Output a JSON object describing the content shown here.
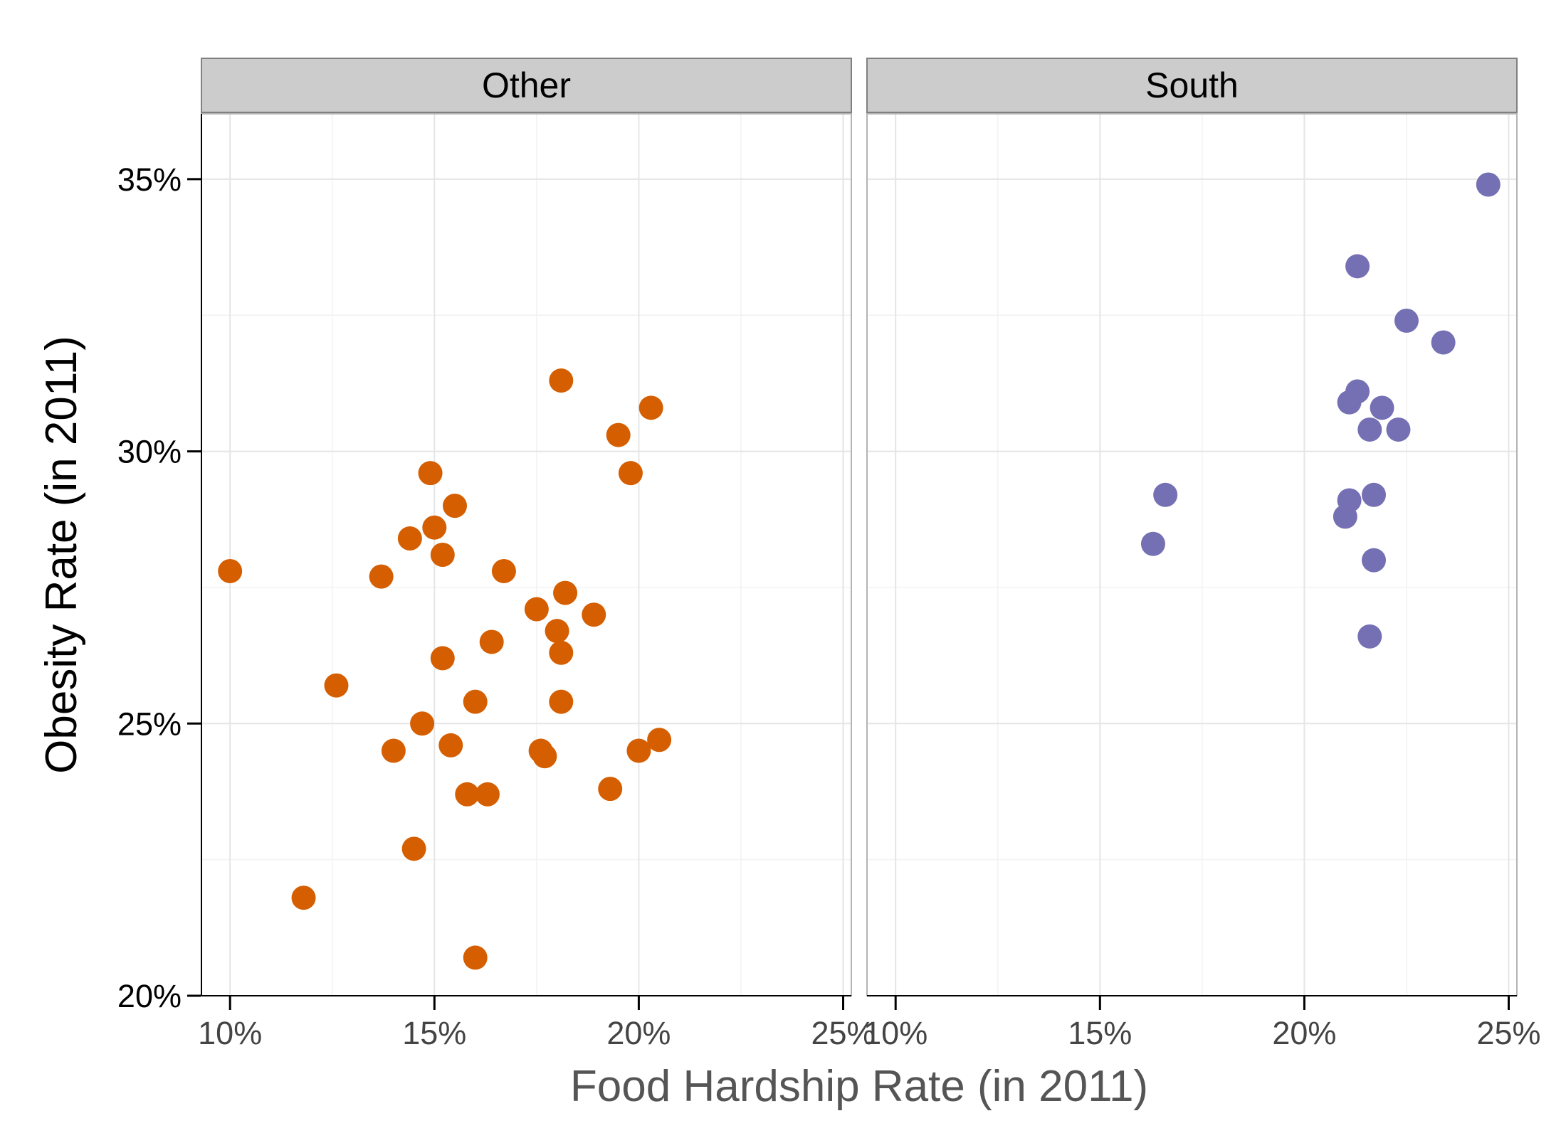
{
  "chart_data": {
    "type": "scatter",
    "xlabel": "Food Hardship Rate (in 2011)",
    "ylabel": "Obesity Rate (in 2011)",
    "xlim": [
      0.093,
      0.252
    ],
    "ylim": [
      0.2,
      0.362
    ],
    "x_ticks": [
      0.1,
      0.15,
      0.2,
      0.25
    ],
    "x_tick_labels": [
      "10%",
      "15%",
      "20%",
      "25%"
    ],
    "y_ticks": [
      0.2,
      0.25,
      0.3,
      0.35
    ],
    "y_tick_labels": [
      "20%",
      "25%",
      "30%",
      "35%"
    ],
    "grid": true,
    "legend": "none",
    "colors": {
      "Other": "#d55e00",
      "South": "#7570b3"
    },
    "panels": [
      {
        "label": "Other",
        "points": [
          {
            "x": 0.1,
            "y": 0.278
          },
          {
            "x": 0.118,
            "y": 0.218
          },
          {
            "x": 0.126,
            "y": 0.257
          },
          {
            "x": 0.137,
            "y": 0.277
          },
          {
            "x": 0.14,
            "y": 0.245
          },
          {
            "x": 0.144,
            "y": 0.284
          },
          {
            "x": 0.145,
            "y": 0.227
          },
          {
            "x": 0.147,
            "y": 0.25
          },
          {
            "x": 0.149,
            "y": 0.296
          },
          {
            "x": 0.15,
            "y": 0.286
          },
          {
            "x": 0.152,
            "y": 0.281
          },
          {
            "x": 0.152,
            "y": 0.262
          },
          {
            "x": 0.154,
            "y": 0.246
          },
          {
            "x": 0.155,
            "y": 0.29
          },
          {
            "x": 0.158,
            "y": 0.237
          },
          {
            "x": 0.16,
            "y": 0.254
          },
          {
            "x": 0.16,
            "y": 0.207
          },
          {
            "x": 0.163,
            "y": 0.237
          },
          {
            "x": 0.164,
            "y": 0.265
          },
          {
            "x": 0.167,
            "y": 0.278
          },
          {
            "x": 0.175,
            "y": 0.271
          },
          {
            "x": 0.176,
            "y": 0.245
          },
          {
            "x": 0.177,
            "y": 0.244
          },
          {
            "x": 0.18,
            "y": 0.267
          },
          {
            "x": 0.181,
            "y": 0.313
          },
          {
            "x": 0.181,
            "y": 0.263
          },
          {
            "x": 0.181,
            "y": 0.254
          },
          {
            "x": 0.182,
            "y": 0.274
          },
          {
            "x": 0.189,
            "y": 0.27
          },
          {
            "x": 0.193,
            "y": 0.238
          },
          {
            "x": 0.195,
            "y": 0.303
          },
          {
            "x": 0.198,
            "y": 0.296
          },
          {
            "x": 0.2,
            "y": 0.245
          },
          {
            "x": 0.203,
            "y": 0.308
          },
          {
            "x": 0.205,
            "y": 0.247
          }
        ]
      },
      {
        "label": "South",
        "points": [
          {
            "x": 0.163,
            "y": 0.283
          },
          {
            "x": 0.166,
            "y": 0.292
          },
          {
            "x": 0.21,
            "y": 0.288
          },
          {
            "x": 0.211,
            "y": 0.309
          },
          {
            "x": 0.211,
            "y": 0.291
          },
          {
            "x": 0.213,
            "y": 0.334
          },
          {
            "x": 0.213,
            "y": 0.311
          },
          {
            "x": 0.216,
            "y": 0.304
          },
          {
            "x": 0.216,
            "y": 0.266
          },
          {
            "x": 0.217,
            "y": 0.292
          },
          {
            "x": 0.217,
            "y": 0.28
          },
          {
            "x": 0.219,
            "y": 0.308
          },
          {
            "x": 0.223,
            "y": 0.304
          },
          {
            "x": 0.225,
            "y": 0.324
          },
          {
            "x": 0.234,
            "y": 0.32
          },
          {
            "x": 0.245,
            "y": 0.349
          }
        ]
      }
    ]
  }
}
